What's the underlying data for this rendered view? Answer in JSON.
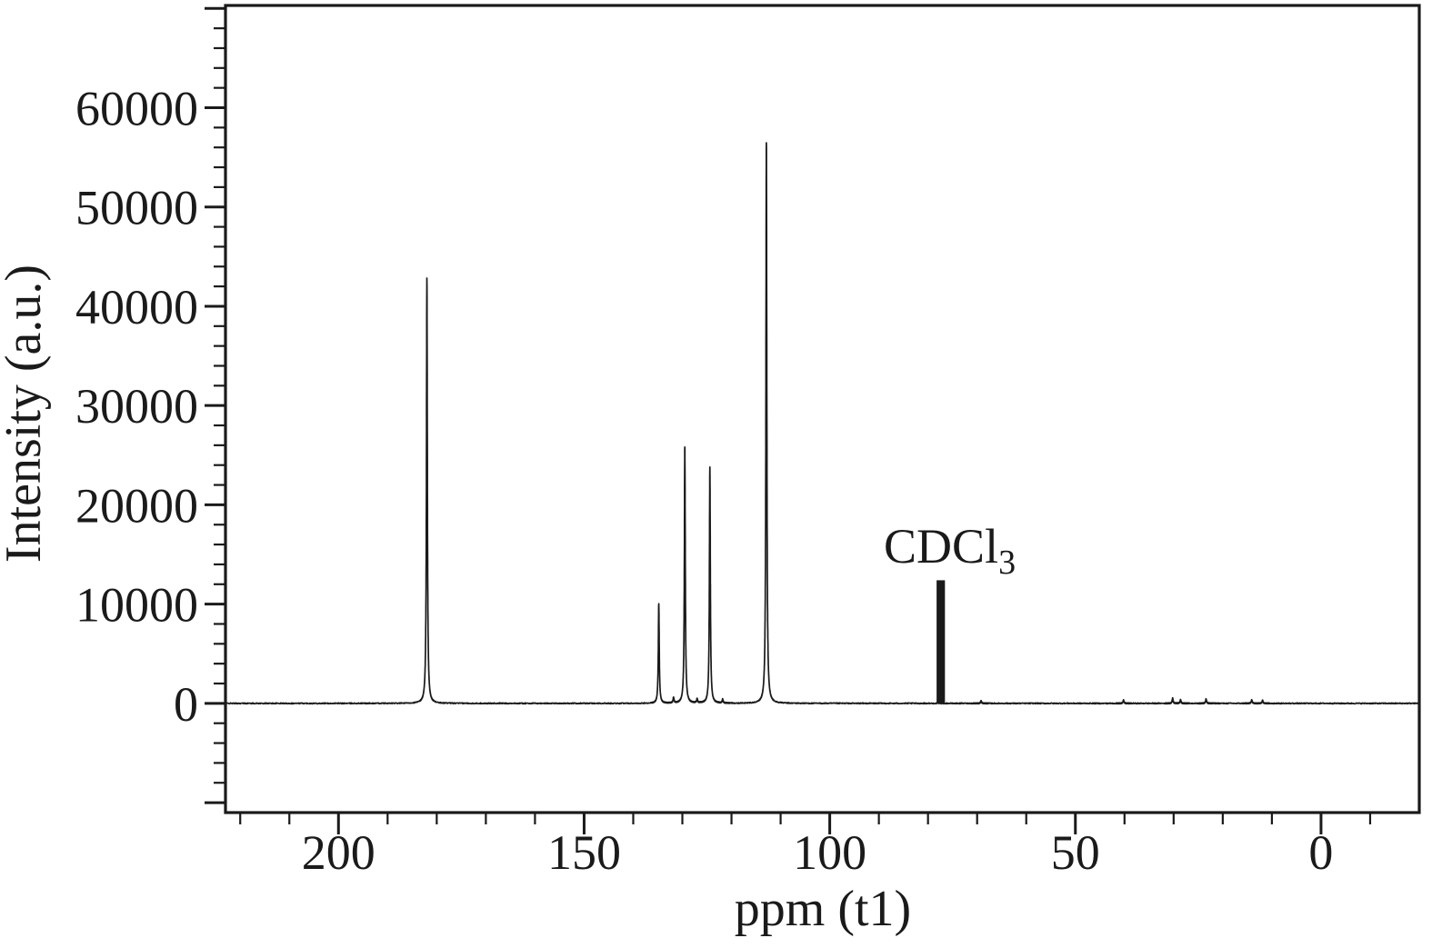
{
  "figure": {
    "background": "#ffffff",
    "frame_color": "#1a1a1a"
  },
  "chart_data": {
    "type": "line",
    "kind": "NMR spectrum",
    "title": "",
    "xlabel": "ppm (t1)",
    "ylabel": "Intensity (a.u.)",
    "x_ticks": [
      200,
      150,
      100,
      50,
      0
    ],
    "x_minor_step": 10,
    "y_ticks": [
      0,
      10000,
      20000,
      30000,
      40000,
      50000,
      60000
    ],
    "y_minor_step": 2000,
    "x_range": [
      223,
      -20
    ],
    "y_range": [
      -11000,
      70300
    ],
    "axis_reversed": true,
    "grid": false,
    "line_color": "#1a1a1a",
    "peaks": [
      {
        "ppm": 182.0,
        "intensity": 42800
      },
      {
        "ppm": 134.8,
        "intensity": 10000
      },
      {
        "ppm": 129.5,
        "intensity": 25800
      },
      {
        "ppm": 124.4,
        "intensity": 23800
      },
      {
        "ppm": 112.9,
        "intensity": 56500
      },
      {
        "ppm": 77.4,
        "intensity": 12400,
        "assignment": "CDCl3",
        "shape": "wide",
        "width_ppm": 1.7
      }
    ],
    "noise_peaks": [
      {
        "ppm": 131.8,
        "intensity": 550
      },
      {
        "ppm": 127.0,
        "intensity": 400
      },
      {
        "ppm": 121.8,
        "intensity": 380
      },
      {
        "ppm": 69.2,
        "intensity": 260
      },
      {
        "ppm": 40.2,
        "intensity": 320
      },
      {
        "ppm": 30.2,
        "intensity": 520
      },
      {
        "ppm": 28.6,
        "intensity": 350
      },
      {
        "ppm": 23.4,
        "intensity": 430
      },
      {
        "ppm": 14.1,
        "intensity": 380
      },
      {
        "ppm": 11.9,
        "intensity": 300
      }
    ],
    "annotation": {
      "text": "CDCl",
      "subscript": "3",
      "ppm": 89,
      "intensity": 14200
    }
  }
}
